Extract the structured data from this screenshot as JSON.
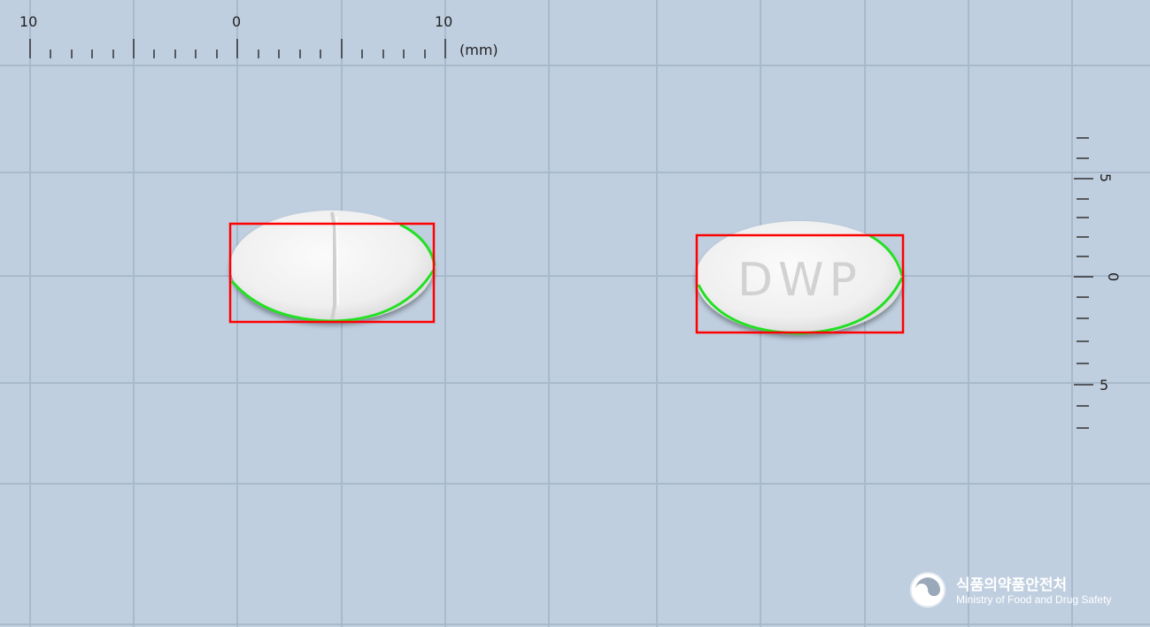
{
  "ruler_top": {
    "labels": [
      "10",
      "0",
      "10"
    ],
    "unit": "(mm)"
  },
  "ruler_right": {
    "labels": [
      "5",
      "0",
      "5"
    ]
  },
  "tablets": [
    {
      "name": "scored-tablet",
      "imprint": ""
    },
    {
      "name": "dwp-tablet",
      "imprint": "DWP"
    }
  ],
  "colors": {
    "background": "#c0cfe0",
    "grid": "#a8b8cb",
    "box": "#ff0000",
    "contour": "#22e022"
  },
  "logo": {
    "name_kr": "식품의약품안전처",
    "name_en": "Ministry of Food and Drug Safety"
  }
}
